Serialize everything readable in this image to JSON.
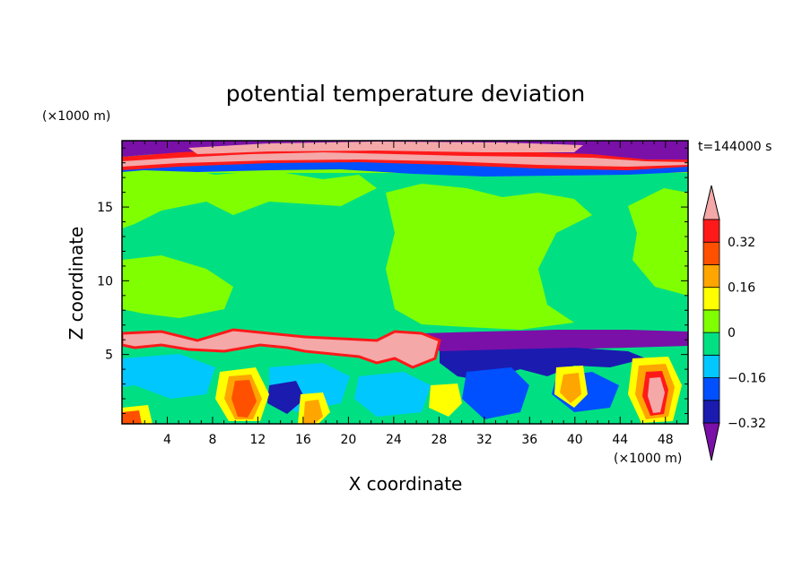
{
  "chart_data": {
    "type": "heatmap",
    "title": "potential temperature deviation",
    "time_label": "t=144000 s",
    "xlabel": "X coordinate",
    "ylabel": "Z coordinate",
    "x_unit": "(×1000 m)",
    "y_unit": "(×1000 m)",
    "xlim": [
      0,
      50
    ],
    "ylim": [
      0.3,
      19.5
    ],
    "x_ticks": [
      4,
      8,
      12,
      16,
      20,
      24,
      28,
      32,
      36,
      40,
      44,
      48
    ],
    "y_ticks": [
      5,
      10,
      15
    ],
    "colorbar": {
      "levels": [
        -0.4,
        -0.32,
        -0.24,
        -0.16,
        -0.08,
        0,
        0.08,
        0.16,
        0.24,
        0.32,
        0.4
      ],
      "tick_labels": [
        "0.32",
        "0.16",
        "0",
        "-0.16",
        "-0.32"
      ],
      "tick_values": [
        0.32,
        0.16,
        0,
        -0.16,
        -0.32
      ],
      "colors": [
        "#7a10a8",
        "#1b1bb0",
        "#0050ff",
        "#00c8ff",
        "#00e082",
        "#80ff00",
        "#ffff00",
        "#ffa500",
        "#ff5000",
        "#ff1a1a",
        "#f4a8a8"
      ],
      "extend": "both"
    },
    "field_regions": [
      {
        "z_range": [
          18.4,
          19.5
        ],
        "value": "-0.40 / +0.40 alternating layers"
      },
      {
        "z_range": [
          17.5,
          18.4
        ],
        "value": "-0.32 .. 0.40"
      },
      {
        "z_range": [
          7.0,
          17.5
        ],
        "value": "-0.04 .. 0.04"
      },
      {
        "z_range": [
          5.0,
          7.0
        ],
        "value": "0.40 (x<28), -0.40 (x>28)"
      },
      {
        "z_range": [
          0.3,
          5.0
        ],
        "value": "-0.24 .. 0.40 cells"
      }
    ]
  }
}
